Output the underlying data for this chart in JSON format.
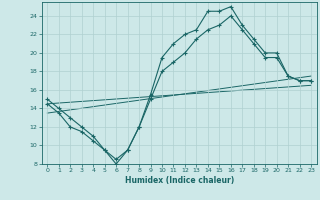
{
  "xlabel": "Humidex (Indice chaleur)",
  "bg_color": "#cde8e8",
  "grid_color": "#b0d0d0",
  "line_color": "#1a6666",
  "xmin": -0.5,
  "xmax": 23.5,
  "ymin": 8,
  "ymax": 25.5,
  "yticks": [
    8,
    10,
    12,
    14,
    16,
    18,
    20,
    22,
    24
  ],
  "xticks": [
    0,
    1,
    2,
    3,
    4,
    5,
    6,
    7,
    8,
    9,
    10,
    11,
    12,
    13,
    14,
    15,
    16,
    17,
    18,
    19,
    20,
    21,
    22,
    23
  ],
  "curve1_x": [
    0,
    1,
    2,
    3,
    4,
    5,
    6,
    7,
    8,
    9,
    10,
    11,
    12,
    13,
    14,
    15,
    16,
    17,
    18,
    19,
    20,
    21,
    22,
    23
  ],
  "curve1_y": [
    15.0,
    14.0,
    13.0,
    12.0,
    11.0,
    9.5,
    8.5,
    9.5,
    12.0,
    15.5,
    19.5,
    21.0,
    22.0,
    22.5,
    24.5,
    24.5,
    25.0,
    23.0,
    21.5,
    20.0,
    20.0,
    17.5,
    17.0,
    17.0
  ],
  "curve2_x": [
    0,
    1,
    2,
    3,
    4,
    5,
    6,
    7,
    8,
    9,
    10,
    11,
    12,
    13,
    14,
    15,
    16,
    17,
    18,
    19,
    20,
    21,
    22,
    23
  ],
  "curve2_y": [
    14.5,
    13.5,
    12.0,
    11.5,
    10.5,
    9.5,
    8.0,
    9.5,
    12.0,
    15.0,
    18.0,
    19.0,
    20.0,
    21.5,
    22.5,
    23.0,
    24.0,
    22.5,
    21.0,
    19.5,
    19.5,
    17.5,
    17.0,
    17.0
  ],
  "line1_x": [
    0,
    23
  ],
  "line1_y": [
    13.5,
    17.5
  ],
  "line2_x": [
    0,
    23
  ],
  "line2_y": [
    14.5,
    16.5
  ]
}
